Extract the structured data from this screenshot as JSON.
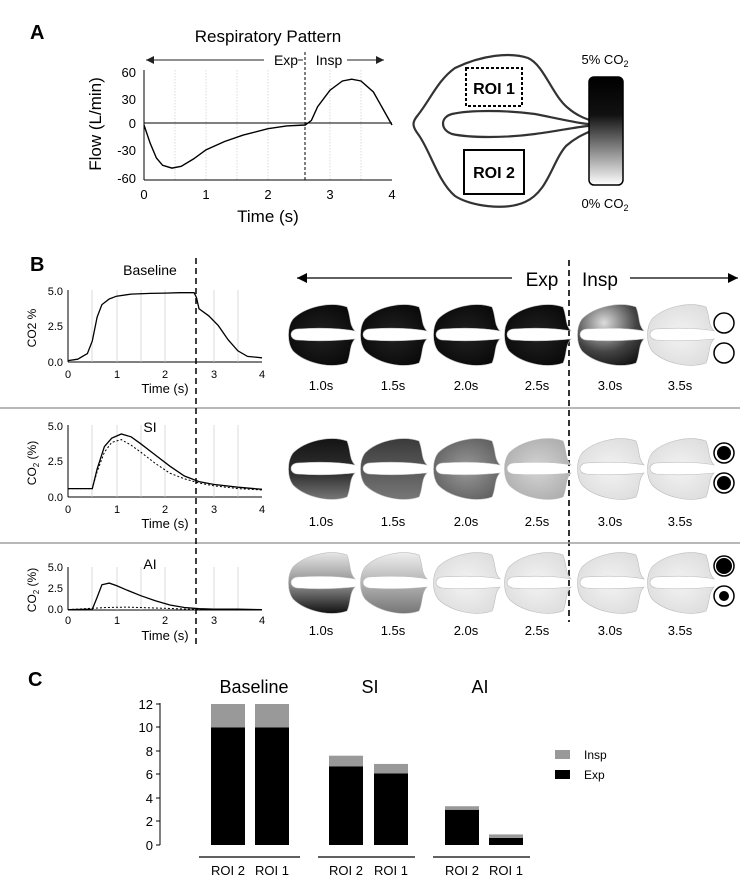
{
  "panel_letters": {
    "a": "A",
    "b": "B",
    "c": "C"
  },
  "panel_a": {
    "title": "Respiratory Pattern",
    "exp_label": "Exp",
    "insp_label": "Insp",
    "xlabel": "Time (s)",
    "ylabel": "Flow (L/min)",
    "xticks": [
      "0",
      "1",
      "2",
      "3",
      "4"
    ],
    "yticks": [
      "60",
      "30",
      "0",
      "-30",
      "-60"
    ],
    "roi1_label": "ROI 1",
    "roi2_label": "ROI 2",
    "scale_top": "5% CO",
    "scale_top_sub": "2",
    "scale_bottom": "0% CO",
    "scale_bottom_sub": "2"
  },
  "panel_b": {
    "exp_label": "Exp",
    "insp_label": "Insp",
    "rows": [
      {
        "title": "Baseline",
        "ylabel": "CO2 %",
        "ylabel_sub": "",
        "yticks": [
          "5.0",
          "2.5",
          "0.0"
        ],
        "xlabel": "Time (s)",
        "xticks": [
          "0",
          "1",
          "2",
          "3",
          "4"
        ]
      },
      {
        "title": "SI",
        "ylabel": "CO",
        "ylabel_sub": "2",
        "ylabel_tail": " (%)",
        "yticks": [
          "5.0",
          "2.5",
          "0.0"
        ],
        "xlabel": "Time (s)",
        "xticks": [
          "0",
          "1",
          "2",
          "3",
          "4"
        ]
      },
      {
        "title": "AI",
        "ylabel": "CO",
        "ylabel_sub": "2",
        "ylabel_tail": " (%)",
        "yticks": [
          "5.0",
          "2.5",
          "0.0"
        ],
        "xlabel": "Time (s)",
        "xticks": [
          "0",
          "1",
          "2",
          "3",
          "4"
        ]
      }
    ],
    "time_labels": [
      "1.0s",
      "1.5s",
      "2.0s",
      "2.5s",
      "3.0s",
      "3.5s"
    ]
  },
  "panel_c": {
    "group_titles": [
      "Baseline",
      "SI",
      "AI"
    ],
    "yticks": [
      "12",
      "10",
      "8",
      "6",
      "4",
      "2",
      "0"
    ],
    "legend": {
      "insp": "Insp",
      "exp": "Exp"
    },
    "colors": {
      "insp": "#999999",
      "exp": "#000000"
    }
  },
  "chart_data": [
    {
      "type": "line",
      "title": "Respiratory Pattern",
      "xlabel": "Time (s)",
      "ylabel": "Flow (L/min)",
      "xlim": [
        0,
        4
      ],
      "ylim": [
        -60,
        60
      ],
      "series": [
        {
          "x": [
            0,
            0.1,
            0.2,
            0.3,
            0.45,
            0.6,
            0.8,
            1.0,
            1.3,
            1.6,
            2.0,
            2.3,
            2.6,
            2.7,
            2.8,
            3.0,
            3.2,
            3.35,
            3.5,
            3.7,
            3.85,
            4.0
          ],
          "y": [
            0,
            -20,
            -36,
            -44,
            -47,
            -45,
            -37,
            -27,
            -18,
            -11,
            -4,
            -1,
            0,
            5,
            20,
            38,
            48,
            50,
            48,
            36,
            18,
            0
          ]
        }
      ]
    },
    {
      "type": "line",
      "title": "Baseline",
      "xlabel": "Time (s)",
      "ylabel": "CO2 %",
      "xlim": [
        0,
        4
      ],
      "ylim": [
        0,
        5
      ],
      "series": [
        {
          "x": [
            0,
            0.2,
            0.4,
            0.5,
            0.6,
            0.7,
            0.85,
            1.0,
            1.3,
            1.7,
            2.0,
            2.3,
            2.6,
            2.65,
            2.7,
            2.9,
            3.1,
            3.3,
            3.5,
            3.7,
            4.0
          ],
          "y": [
            0.1,
            0.2,
            0.6,
            1.5,
            3.2,
            4.1,
            4.5,
            4.7,
            4.85,
            4.9,
            4.92,
            4.95,
            4.95,
            4.6,
            3.8,
            3.3,
            2.6,
            1.6,
            0.8,
            0.4,
            0.3
          ]
        }
      ]
    },
    {
      "type": "line",
      "title": "SI",
      "xlabel": "Time (s)",
      "ylabel": "CO2 (%)",
      "xlim": [
        0,
        4
      ],
      "ylim": [
        0,
        5
      ],
      "series": [
        {
          "x": [
            0,
            0.5,
            0.6,
            0.75,
            0.9,
            1.1,
            1.3,
            1.5,
            1.8,
            2.1,
            2.4,
            2.7,
            3.0,
            3.5,
            4.0
          ],
          "y": [
            0.6,
            0.6,
            2.0,
            3.6,
            4.2,
            4.5,
            4.3,
            3.8,
            3.0,
            2.2,
            1.5,
            1.1,
            0.9,
            0.7,
            0.55
          ]
        },
        {
          "x": [
            0,
            0.5,
            0.6,
            0.75,
            0.9,
            1.1,
            1.3,
            1.5,
            1.8,
            2.1,
            2.4,
            2.7,
            3.0,
            3.5,
            4.0
          ],
          "y": [
            0.6,
            0.6,
            1.8,
            3.2,
            3.9,
            4.1,
            3.7,
            3.2,
            2.4,
            1.7,
            1.3,
            1.0,
            0.8,
            0.6,
            0.5
          ]
        }
      ]
    },
    {
      "type": "line",
      "title": "AI",
      "xlabel": "Time (s)",
      "ylabel": "CO2 (%)",
      "xlim": [
        0,
        4
      ],
      "ylim": [
        0,
        5
      ],
      "series": [
        {
          "x": [
            0,
            0.5,
            0.6,
            0.7,
            0.85,
            1.0,
            1.2,
            1.5,
            1.8,
            2.1,
            2.4,
            2.7,
            3.0,
            3.5,
            4.0
          ],
          "y": [
            0.05,
            0.1,
            1.5,
            3.0,
            3.2,
            2.9,
            2.4,
            1.7,
            1.1,
            0.6,
            0.3,
            0.15,
            0.1,
            0.1,
            0.05
          ]
        },
        {
          "x": [
            0,
            0.5,
            0.8,
            1.2,
            2.0,
            2.5,
            3.0,
            4.0
          ],
          "y": [
            0.05,
            0.2,
            0.3,
            0.35,
            0.2,
            0.1,
            0.05,
            0.05
          ]
        }
      ]
    },
    {
      "type": "bar",
      "title": "",
      "ylim": [
        0,
        12
      ],
      "groups": [
        "Baseline",
        "SI",
        "AI"
      ],
      "categories": [
        "ROI 2",
        "ROI 1"
      ],
      "series": [
        {
          "name": "Exp",
          "values": [
            [
              10,
              10
            ],
            [
              6.7,
              6.1
            ],
            [
              3.0,
              0.6
            ]
          ]
        },
        {
          "name": "Insp",
          "values": [
            [
              2,
              2
            ],
            [
              0.9,
              0.8
            ],
            [
              0.3,
              0.3
            ]
          ]
        }
      ]
    }
  ]
}
